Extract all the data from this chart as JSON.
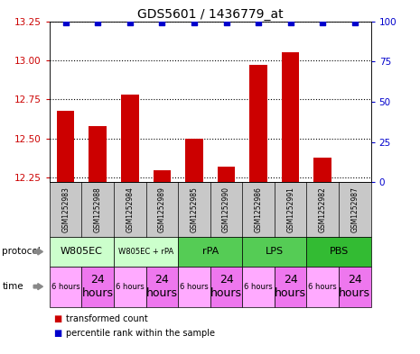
{
  "title": "GDS5601 / 1436779_at",
  "samples": [
    "GSM1252983",
    "GSM1252988",
    "GSM1252984",
    "GSM1252989",
    "GSM1252985",
    "GSM1252990",
    "GSM1252986",
    "GSM1252991",
    "GSM1252982",
    "GSM1252987"
  ],
  "bar_values": [
    12.68,
    12.58,
    12.78,
    12.3,
    12.5,
    12.32,
    12.97,
    13.05,
    12.38,
    12.22
  ],
  "percentile_values": [
    99,
    99,
    99,
    99,
    99,
    99,
    99,
    99,
    99,
    99
  ],
  "ylim_left": [
    12.22,
    13.25
  ],
  "ylim_right": [
    0,
    100
  ],
  "yticks_left": [
    12.25,
    12.5,
    12.75,
    13.0,
    13.25
  ],
  "yticks_right": [
    0,
    25,
    50,
    75,
    100
  ],
  "bar_color": "#cc0000",
  "dot_color": "#0000cc",
  "protocols_def": [
    {
      "label": "W805EC",
      "cols": [
        0,
        1
      ],
      "color": "#ccffcc"
    },
    {
      "label": "W805EC + rPA",
      "cols": [
        2,
        3
      ],
      "color": "#ccffcc"
    },
    {
      "label": "rPA",
      "cols": [
        4,
        5
      ],
      "color": "#55cc55"
    },
    {
      "label": "LPS",
      "cols": [
        6,
        7
      ],
      "color": "#55cc55"
    },
    {
      "label": "PBS",
      "cols": [
        8,
        9
      ],
      "color": "#33bb33"
    }
  ],
  "time_labels": [
    "6 hours",
    "24\nhours",
    "6 hours",
    "24\nhours",
    "6 hours",
    "24\nhours",
    "6 hours",
    "24\nhours",
    "6 hours",
    "24\nhours"
  ],
  "time_color_small": "#ffaaff",
  "time_color_large": "#ee77ee",
  "sample_bg_color": "#c8c8c8",
  "grid_color": "black",
  "left_label_color": "#cc0000",
  "right_label_color": "#0000cc"
}
